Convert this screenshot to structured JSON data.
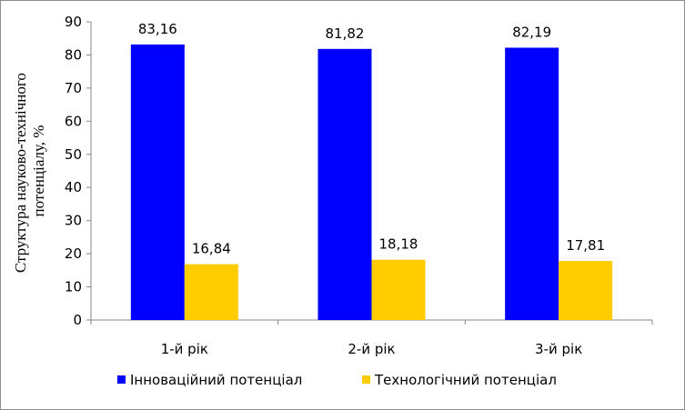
{
  "chart_data": {
    "type": "bar",
    "categories": [
      "1-й рік",
      "2-й рік",
      "3-й рік"
    ],
    "series": [
      {
        "name": "Інноваційний потенціал",
        "values": [
          83.16,
          81.82,
          82.19
        ],
        "labels": [
          "83,16",
          "81,82",
          "82,19"
        ],
        "color": "#0000ff"
      },
      {
        "name": "Технологічний потенціал",
        "values": [
          16.84,
          18.18,
          17.81
        ],
        "labels": [
          "16,84",
          "18,18",
          "17,81"
        ],
        "color": "#ffcc00"
      }
    ],
    "ylabel_lines": [
      "Структура науково-технічного",
      "потенціалу, %"
    ],
    "ylim": [
      0,
      90
    ],
    "yticks": [
      0,
      10,
      20,
      30,
      40,
      50,
      60,
      70,
      80,
      90
    ],
    "grid": false,
    "legend": "bottom"
  }
}
